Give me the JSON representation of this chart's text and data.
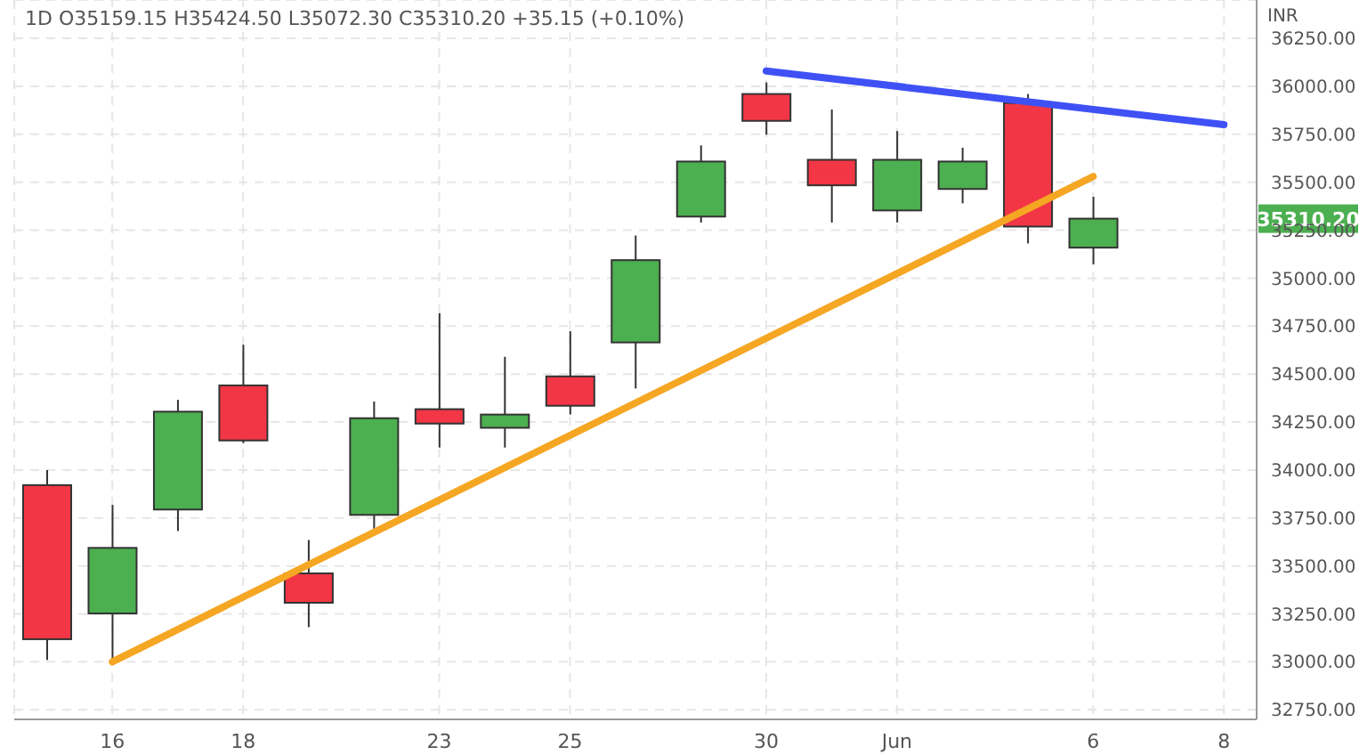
{
  "chart_data": {
    "type": "candlestick",
    "title": "1D  O35159.15  H35424.50  L35072.30  C35310.20  +35.15 (+0.10%)",
    "ylabel": "INR",
    "categories": [
      null,
      "16",
      null,
      "18",
      null,
      null,
      "23",
      null,
      "25",
      null,
      null,
      "30",
      null,
      "Jun",
      null,
      null,
      "6",
      null,
      "8"
    ],
    "ohlc": [
      [
        33921,
        33999,
        33010,
        33118
      ],
      [
        33252,
        33818,
        33010,
        33594
      ],
      [
        33794,
        34366,
        33682,
        34304
      ],
      [
        34441,
        34653,
        34140,
        34154
      ],
      [
        33461,
        33635,
        33181,
        33308
      ],
      [
        33766,
        34357,
        33694,
        34270
      ],
      [
        34317,
        34817,
        34117,
        34242
      ],
      [
        34220,
        34590,
        34117,
        34289
      ],
      [
        34488,
        34724,
        34289,
        34335
      ],
      [
        34665,
        35222,
        34425,
        35094
      ],
      [
        35321,
        35692,
        35290,
        35608
      ],
      [
        35960,
        36020,
        35748,
        35820
      ],
      [
        35617,
        35879,
        35290,
        35484
      ],
      [
        35353,
        35767,
        35290,
        35617
      ],
      [
        35465,
        35680,
        35390,
        35608
      ],
      [
        35913,
        35960,
        35181,
        35269
      ],
      [
        35159.15,
        35424.5,
        35072.3,
        35310.2
      ],
      null,
      null
    ],
    "colors": [
      "#f23645",
      "#4caf50",
      "#4caf50",
      "#f23645",
      "#f23645",
      "#4caf50",
      "#f23645",
      "#4caf50",
      "#f23645",
      "#4caf50",
      "#4caf50",
      "#f23645",
      "#f23645",
      "#4caf50",
      "#4caf50",
      "#f23645",
      "#4caf50",
      null,
      null
    ],
    "series": [
      {
        "type": "line",
        "color": "#f5a623",
        "x": [
          "16",
          "6"
        ],
        "values": [
          33000,
          35530
        ]
      },
      {
        "type": "line",
        "color": "#3f51f5",
        "x": [
          "30",
          "8"
        ],
        "values": [
          36080,
          35800
        ]
      }
    ],
    "ylim": [
      32700,
      36450
    ],
    "yticks": [
      {
        "value": 32750,
        "label": "32750.00"
      },
      {
        "value": 33000,
        "label": "33000.00"
      },
      {
        "value": 33250,
        "label": "33250.00"
      },
      {
        "value": 33500,
        "label": "33500.00"
      },
      {
        "value": 33750,
        "label": "33750.00"
      },
      {
        "value": 34000,
        "label": "34000.00"
      },
      {
        "value": 34250,
        "label": "34250.00"
      },
      {
        "value": 34500,
        "label": "34500.00"
      },
      {
        "value": 34750,
        "label": "34750.00"
      },
      {
        "value": 35000,
        "label": "35000.00"
      },
      {
        "value": 35250,
        "label": "35250.00"
      },
      {
        "value": 35500,
        "label": "35500.00"
      },
      {
        "value": 35750,
        "label": "35750.00"
      },
      {
        "value": 36000,
        "label": "36000.00"
      },
      {
        "value": 36250,
        "label": "36250.00"
      }
    ],
    "annotations": [
      "35310.20"
    ],
    "grid": true
  }
}
